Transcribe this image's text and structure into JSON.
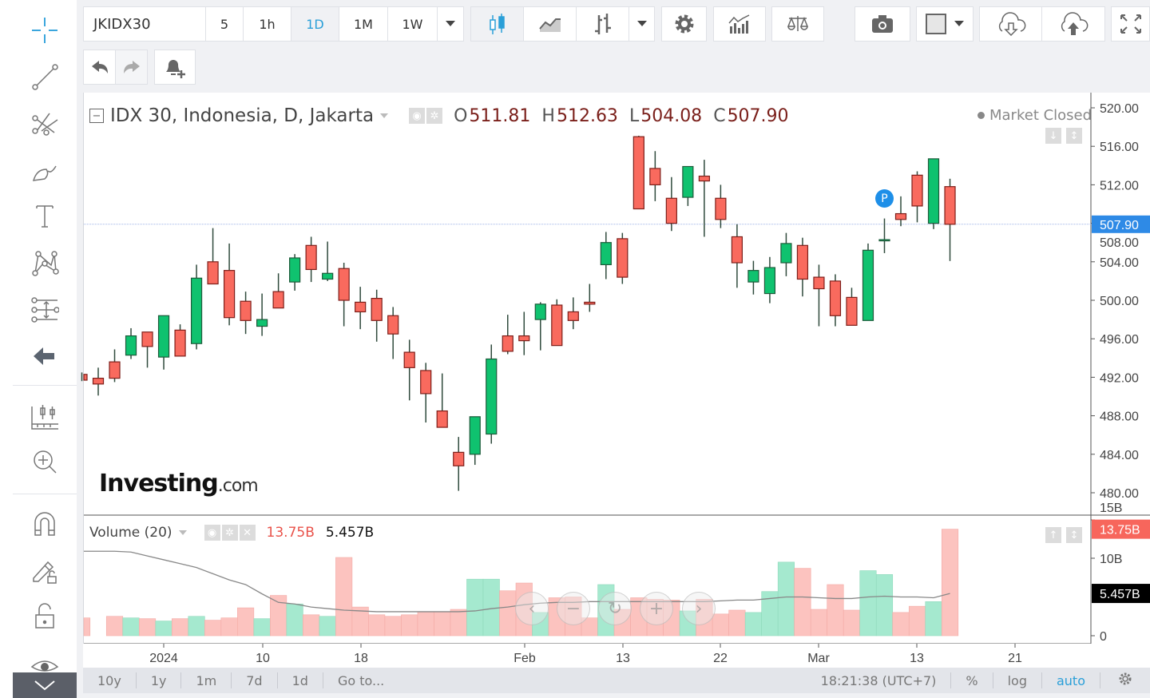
{
  "toolbar": {
    "symbol": "JKIDX30",
    "intervals": [
      "5",
      "1h",
      "1D",
      "1M",
      "1W"
    ],
    "active_interval": "1D",
    "accent_color": "#2a9fd8"
  },
  "legend": {
    "title": "IDX 30, Indonesia, D, Jakarta",
    "o_label": "O",
    "o": "511.81",
    "h_label": "H",
    "h": "512.63",
    "l_label": "L",
    "l": "504.08",
    "c_label": "C",
    "c": "507.90",
    "market_status": "Market Closed"
  },
  "volume_legend": {
    "title": "Volume (20)",
    "value": "13.75B",
    "ma_value": "5.457B"
  },
  "logo": {
    "text_main": "Investing",
    "text_suffix": ".com"
  },
  "marker": {
    "letter": "P"
  },
  "bottom_bar": {
    "ranges": [
      "10y",
      "1y",
      "1m",
      "7d",
      "1d"
    ],
    "goto": "Go to...",
    "clock": "18:21:38 (UTC+7)",
    "percent": "%",
    "log": "log",
    "auto": "auto"
  },
  "chart_data": [
    {
      "type": "candlestick",
      "title": "IDX 30, Indonesia, D, Jakarta",
      "x_ticks": [
        "2024",
        "10",
        "18",
        "Feb",
        "13",
        "22",
        "Mar",
        "13",
        "21"
      ],
      "y_ticks": [
        "520.00",
        "516.00",
        "512.00",
        "508.00",
        "504.00",
        "500.00",
        "496.00",
        "492.00",
        "488.00",
        "484.00",
        "480.00"
      ],
      "ylim": [
        480,
        520
      ],
      "last_price_label": "507.90",
      "colors": {
        "up": "#0fc26f",
        "down": "#f96a5e",
        "last_price": "#2e8ae6"
      },
      "ohlc": [
        [
          492.3,
          492.5,
          491.6,
          491.7
        ],
        [
          491.9,
          493.0,
          490.1,
          491.3
        ],
        [
          493.6,
          494.9,
          491.5,
          491.9
        ],
        [
          494.3,
          497.1,
          493.9,
          496.3
        ],
        [
          496.7,
          496.7,
          493.0,
          495.2
        ],
        [
          494.1,
          498.4,
          492.8,
          498.4
        ],
        [
          496.9,
          497.5,
          494.2,
          494.2
        ],
        [
          495.5,
          503.7,
          494.9,
          502.3
        ],
        [
          504.0,
          507.5,
          501.7,
          501.7
        ],
        [
          503.1,
          505.9,
          497.4,
          498.2
        ],
        [
          499.9,
          500.9,
          496.5,
          497.9
        ],
        [
          497.3,
          500.7,
          496.3,
          498.0
        ],
        [
          500.9,
          502.8,
          499.2,
          499.2
        ],
        [
          501.9,
          504.8,
          501.0,
          504.4
        ],
        [
          505.7,
          506.6,
          501.9,
          503.2
        ],
        [
          502.2,
          506.1,
          502.0,
          502.8
        ],
        [
          503.3,
          503.9,
          497.3,
          500.0
        ],
        [
          499.8,
          501.4,
          497.0,
          498.8
        ],
        [
          500.2,
          501.1,
          495.7,
          497.9
        ],
        [
          498.4,
          499.3,
          493.9,
          496.5
        ],
        [
          494.6,
          495.9,
          489.6,
          493.0
        ],
        [
          492.7,
          493.5,
          487.3,
          490.3
        ],
        [
          488.5,
          492.4,
          486.8,
          486.8
        ],
        [
          484.2,
          485.8,
          480.2,
          482.8
        ],
        [
          484.0,
          487.9,
          482.9,
          487.9
        ],
        [
          486.1,
          495.4,
          485.1,
          493.9
        ],
        [
          496.3,
          498.5,
          494.4,
          494.7
        ],
        [
          496.3,
          498.8,
          494.3,
          495.8
        ],
        [
          498.0,
          499.8,
          494.8,
          499.6
        ],
        [
          499.5,
          500.1,
          495.3,
          495.3
        ],
        [
          498.8,
          500.3,
          497.0,
          497.9
        ],
        [
          499.8,
          501.7,
          498.8,
          499.6
        ],
        [
          503.7,
          507.1,
          502.2,
          506.0
        ],
        [
          506.4,
          507.0,
          501.7,
          502.4
        ],
        [
          517.0,
          517.1,
          509.5,
          509.5
        ],
        [
          513.7,
          515.5,
          510.3,
          512.0
        ],
        [
          510.6,
          512.8,
          507.2,
          508.0
        ],
        [
          510.7,
          513.9,
          509.8,
          513.9
        ],
        [
          512.9,
          514.6,
          506.6,
          512.4
        ],
        [
          510.6,
          512.0,
          507.5,
          508.4
        ],
        [
          506.6,
          507.9,
          501.3,
          503.9
        ],
        [
          501.9,
          504.1,
          500.6,
          503.1
        ],
        [
          500.7,
          504.5,
          499.7,
          503.4
        ],
        [
          503.9,
          507.0,
          502.5,
          505.9
        ],
        [
          505.7,
          506.5,
          500.4,
          502.2
        ],
        [
          502.4,
          503.7,
          497.3,
          501.2
        ],
        [
          502.0,
          502.7,
          497.3,
          498.4
        ],
        [
          500.3,
          501.3,
          497.4,
          497.4
        ],
        [
          497.9,
          505.9,
          497.9,
          505.2
        ],
        [
          506.2,
          508.5,
          504.9,
          506.3
        ],
        [
          509.0,
          510.8,
          507.7,
          508.4
        ],
        [
          513.0,
          513.4,
          508.1,
          509.8
        ],
        [
          508.0,
          514.7,
          507.4,
          514.7
        ],
        [
          511.81,
          512.63,
          504.08,
          507.9
        ]
      ]
    },
    {
      "type": "bar",
      "title": "Volume (20)",
      "unit": "B",
      "y_ticks": [
        "0",
        "10B",
        "15B"
      ],
      "ylim": [
        0,
        15
      ],
      "colors": {
        "up": "#a5e9cf",
        "down": "#fcc3bf",
        "ma": "#888888"
      },
      "values": [
        2.3,
        0,
        2.5,
        2.3,
        2.2,
        1.9,
        2.2,
        2.5,
        2.0,
        2.3,
        3.6,
        2.2,
        5.2,
        4.1,
        2.7,
        2.5,
        10.1,
        3.7,
        2.7,
        2.5,
        2.7,
        3.1,
        3.1,
        3.4,
        7.3,
        7.3,
        5.8,
        6.8,
        3.0,
        4.9,
        5.0,
        2.3,
        6.6,
        3.4,
        4.9,
        4.7,
        4.6,
        3.2,
        4.7,
        2.8,
        3.3,
        3.0,
        5.7,
        9.5,
        8.7,
        3.4,
        6.6,
        3.3,
        8.4,
        7.9,
        3.0,
        3.8,
        4.4,
        13.75
      ],
      "ma": [
        10.9,
        10.9,
        10.9,
        10.8,
        10.3,
        9.8,
        9.3,
        8.8,
        8.0,
        7.2,
        6.6,
        5.4,
        4.3,
        4.1,
        3.7,
        3.5,
        3.3,
        3.2,
        3.1,
        3.1,
        3.1,
        3.1,
        3.1,
        3.1,
        3.2,
        3.5,
        3.7,
        4.0,
        4.2,
        4.3,
        4.3,
        4.4,
        4.4,
        4.4,
        4.4,
        4.4,
        4.4,
        4.4,
        4.4,
        4.5,
        4.6,
        4.6,
        4.8,
        5.0,
        5.0,
        4.9,
        4.8,
        4.8,
        5.0,
        5.1,
        5.0,
        5.0,
        4.9,
        5.457
      ],
      "last_value_label": "13.75B",
      "ma_label": "5.457B"
    }
  ]
}
